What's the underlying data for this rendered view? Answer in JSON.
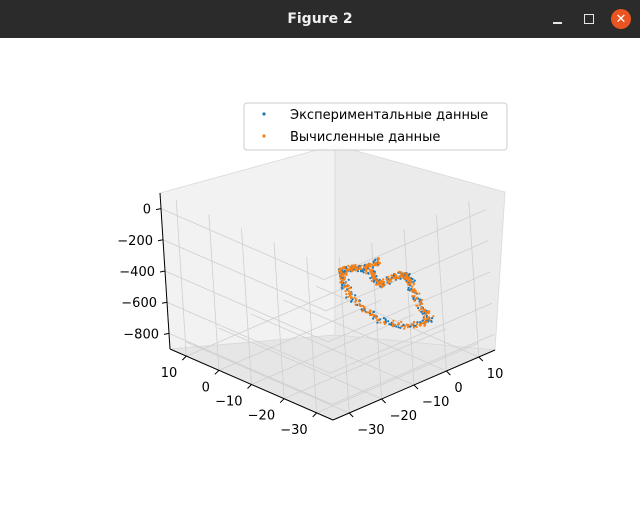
{
  "window": {
    "title": "Figure 2",
    "controls": {
      "minimize": "minimize",
      "maximize": "maximize",
      "close": "✕"
    },
    "close_color": "#e95420"
  },
  "chart_data": {
    "type": "scatter",
    "projection": "3d",
    "title": "",
    "x_ticks": [
      10,
      0,
      -10,
      -20,
      -30
    ],
    "y_ticks": [
      -30,
      -20,
      -10,
      0,
      10
    ],
    "z_ticks": [
      0,
      -200,
      -400,
      -600,
      -800
    ],
    "x_tick_labels": [
      "10",
      "0",
      "−10",
      "−20",
      "−30"
    ],
    "y_tick_labels": [
      "−30",
      "−20",
      "−10",
      "0",
      "10"
    ],
    "z_tick_labels": [
      "0",
      "−200",
      "−400",
      "−600",
      "−800"
    ],
    "xlim": [
      -35,
      15
    ],
    "ylim": [
      -35,
      15
    ],
    "zlim": [
      -900,
      100
    ],
    "grid": true,
    "legend_position": "top-right",
    "series": [
      {
        "name": "Экспериментальные данные",
        "color": "#1f77b4",
        "path": [
          [
            -35,
            -21,
            -70
          ],
          [
            -33,
            -18,
            -150
          ],
          [
            -30,
            -14,
            -260
          ],
          [
            -25,
            -8,
            -360
          ],
          [
            -20,
            0,
            -440
          ],
          [
            -16,
            6,
            -510
          ],
          [
            -14,
            10,
            -570
          ],
          [
            -13,
            12,
            -640
          ],
          [
            -14,
            12,
            -700
          ],
          [
            -17,
            11,
            -760
          ],
          [
            -20,
            10,
            -790
          ],
          [
            -22,
            6,
            -770
          ],
          [
            -22,
            0,
            -730
          ],
          [
            -20,
            -4,
            -680
          ],
          [
            -17,
            -6,
            -620
          ],
          [
            -14,
            -7,
            -560
          ],
          [
            -13,
            -8,
            -480
          ],
          [
            -14,
            -9,
            -400
          ],
          [
            -16,
            -11,
            -330
          ],
          [
            -19,
            -12,
            -280
          ],
          [
            -22,
            -13,
            -240
          ],
          [
            -26,
            -14,
            -200
          ],
          [
            -28,
            -14,
            -160
          ],
          [
            -31,
            -14,
            -100
          ]
        ]
      },
      {
        "name": "Вычисленные данные",
        "color": "#ff7f0e",
        "path": [
          [
            -35,
            -21,
            -70
          ],
          [
            -33,
            -18,
            -150
          ],
          [
            -30,
            -14,
            -260
          ],
          [
            -25,
            -8,
            -360
          ],
          [
            -20,
            0,
            -440
          ],
          [
            -16,
            6,
            -510
          ],
          [
            -14,
            10,
            -570
          ],
          [
            -13,
            12,
            -640
          ],
          [
            -14,
            12,
            -700
          ],
          [
            -17,
            11,
            -760
          ],
          [
            -20,
            10,
            -790
          ],
          [
            -22,
            6,
            -770
          ],
          [
            -22,
            0,
            -730
          ],
          [
            -20,
            -4,
            -680
          ],
          [
            -17,
            -6,
            -620
          ],
          [
            -14,
            -7,
            -560
          ],
          [
            -13,
            -8,
            -480
          ],
          [
            -14,
            -9,
            -400
          ],
          [
            -16,
            -11,
            -330
          ],
          [
            -19,
            -12,
            -280
          ],
          [
            -22,
            -13,
            -240
          ],
          [
            -26,
            -14,
            -200
          ],
          [
            -28,
            -14,
            -160
          ],
          [
            -31,
            -14,
            -100
          ]
        ]
      }
    ]
  }
}
